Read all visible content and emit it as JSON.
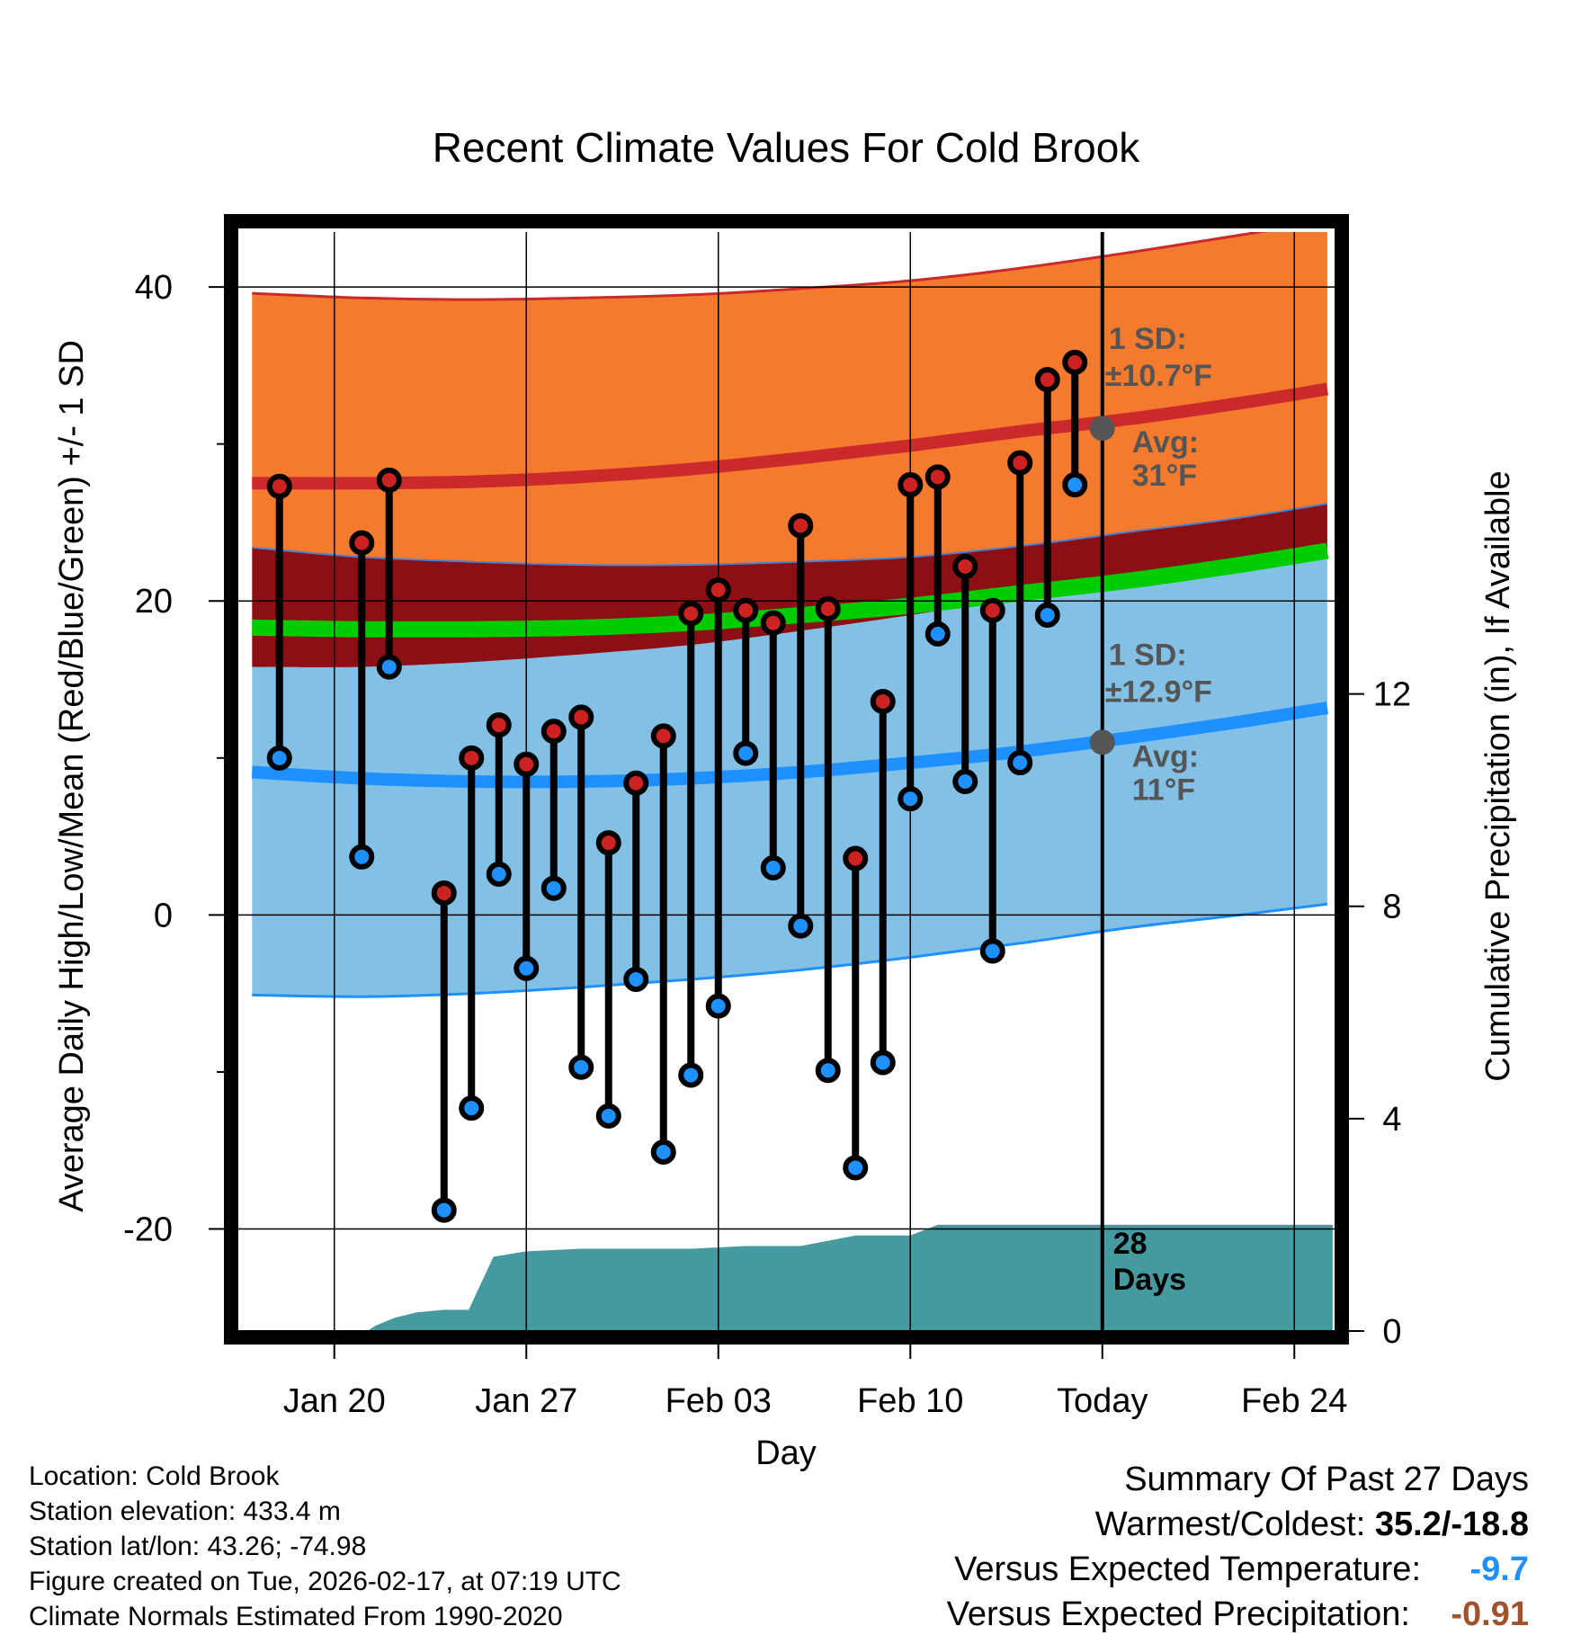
{
  "colors": {
    "high_normal_band": "#f47b2e",
    "high_band_edge": "#cc2a2a",
    "mean_band": "#8c0f16",
    "mean_line": "#00cc00",
    "low_normal_band": "#82c0e6",
    "low_band_edge": "#1e90ff",
    "precip_fill": "#459a9f",
    "high_marker": "#cc2222",
    "low_marker": "#1e90ff",
    "annotation": "#555555",
    "temp_anomaly": "#1e90ff",
    "precip_anomaly": "#a0522d"
  },
  "chart_data": {
    "type": "line",
    "title": "Recent Climate Values For Cold Brook",
    "xlabel": "Day",
    "ylabel": "Average Daily High/Low/Mean (Red/Blue/Green) +/- 1 SD",
    "y2label": "Cumulative Precipitation (in), If Available",
    "x_range_days": [
      -31.5,
      8.5
    ],
    "ylim": [
      -26.5,
      43.5
    ],
    "y2lim": [
      0,
      20.7
    ],
    "x_ticks": [
      {
        "day": -28,
        "label": "Jan 20"
      },
      {
        "day": -21,
        "label": "Jan 27"
      },
      {
        "day": -14,
        "label": "Feb 03"
      },
      {
        "day": -7,
        "label": "Feb 10"
      },
      {
        "day": 0,
        "label": "Today"
      },
      {
        "day": 7,
        "label": "Feb 24"
      }
    ],
    "y_ticks": [
      {
        "value": 40,
        "label": "40"
      },
      {
        "value": 20,
        "label": "20"
      },
      {
        "value": 0,
        "label": "0"
      },
      {
        "value": -20,
        "label": "-20"
      }
    ],
    "y_minor_ticks": [
      30,
      10,
      -10
    ],
    "y2_ticks": [
      {
        "value": 12,
        "label": "12"
      },
      {
        "value": 8,
        "label": "8"
      },
      {
        "value": 4,
        "label": "4"
      },
      {
        "value": 0,
        "label": "0"
      }
    ],
    "normals_x": [
      -31,
      -27,
      -23,
      -19,
      -15,
      -11,
      -7,
      -3,
      1,
      5,
      8.2
    ],
    "normal_high": [
      27.5,
      27.5,
      27.6,
      27.9,
      28.4,
      29.1,
      29.9,
      30.8,
      31.6,
      32.6,
      33.5
    ],
    "normal_high_upper": [
      39.6,
      39.3,
      39.2,
      39.3,
      39.5,
      39.9,
      40.4,
      41.2,
      42.2,
      43.3,
      44.2
    ],
    "normal_high_lower": [
      23.4,
      22.8,
      22.5,
      22.3,
      22.3,
      22.5,
      22.8,
      23.5,
      24.4,
      25.3,
      26.2
    ],
    "normal_mean": [
      18.3,
      18.2,
      18.2,
      18.3,
      18.6,
      19.1,
      19.7,
      20.5,
      21.3,
      22.3,
      23.2
    ],
    "normal_low": [
      9.1,
      8.7,
      8.5,
      8.5,
      8.7,
      9.1,
      9.7,
      10.4,
      11.3,
      12.3,
      13.2
    ],
    "normal_low_upper": [
      15.8,
      15.8,
      16.1,
      16.6,
      17.2,
      18.1,
      19.1,
      20.2,
      21.4,
      22.2,
      22.9
    ],
    "normal_low_lower": [
      -5.1,
      -5.2,
      -5.0,
      -4.6,
      -4.1,
      -3.5,
      -2.7,
      -1.8,
      -0.8,
      0.0,
      0.7
    ],
    "days": [
      -30,
      -27,
      -26,
      -24,
      -23,
      -22,
      -21,
      -20,
      -19,
      -18,
      -17,
      -16,
      -15,
      -14,
      -13,
      -12,
      -11,
      -10,
      -9,
      -8,
      -7,
      -6,
      -5,
      -4,
      -3,
      -2,
      -1
    ],
    "highs": [
      27.3,
      23.7,
      27.7,
      1.4,
      10.0,
      12.1,
      9.6,
      11.7,
      12.6,
      4.6,
      8.4,
      11.4,
      19.2,
      20.7,
      19.4,
      18.6,
      24.8,
      19.5,
      3.6,
      13.6,
      27.4,
      27.9,
      22.2,
      19.4,
      28.8,
      34.1,
      35.2
    ],
    "lows": [
      10.0,
      3.7,
      15.8,
      -18.8,
      -12.3,
      2.6,
      -3.4,
      1.7,
      -9.7,
      -12.8,
      -4.1,
      -15.1,
      -10.2,
      -5.8,
      10.3,
      3.0,
      -0.7,
      -9.9,
      -16.1,
      -9.4,
      7.4,
      17.9,
      8.5,
      -2.3,
      9.7,
      19.1,
      27.4
    ],
    "precip_x": [
      -31.4,
      -26.8,
      -26.5,
      -25.8,
      -25.0,
      -24.0,
      -23.1,
      -22.2,
      -21.0,
      -19.0,
      -15.0,
      -13.0,
      -11.0,
      -10.0,
      -9.0,
      -8.0,
      -7.0,
      -6.0,
      8.4
    ],
    "precip_cum": [
      0,
      0,
      0.1,
      0.25,
      0.35,
      0.4,
      0.4,
      1.4,
      1.5,
      1.55,
      1.55,
      1.6,
      1.6,
      1.7,
      1.8,
      1.8,
      1.8,
      2.0,
      2.0
    ],
    "today_day": 0,
    "annotations": {
      "high_sd_title": "1 SD:",
      "high_sd_value": "±10.7°F",
      "high_avg_title": "Avg:",
      "high_avg_value": "31°F",
      "high_avg_point": 31,
      "low_sd_title": "1 SD:",
      "low_sd_value": "±12.9°F",
      "low_avg_title": "Avg:",
      "low_avg_value": "11°F",
      "low_avg_point": 11,
      "precip_days_number": "28",
      "precip_days_word": "Days"
    }
  },
  "footer": {
    "location": "Location: Cold Brook",
    "elevation": "Station elevation: 433.4 m",
    "latlon": "Station lat/lon: 43.26; -74.98",
    "created": "Figure created on Tue, 2026-02-17, at 07:19 UTC",
    "normals": "Climate Normals Estimated From 1990-2020"
  },
  "summary": {
    "title": "Summary Of Past 27 Days",
    "warm_cold_label": "Warmest/Coldest: ",
    "warm_cold_value": "35.2/-18.8",
    "temp_label": "Versus Expected Temperature:",
    "temp_value": "-9.7",
    "precip_label": "Versus Expected Precipitation:",
    "precip_value": "-0.91"
  }
}
